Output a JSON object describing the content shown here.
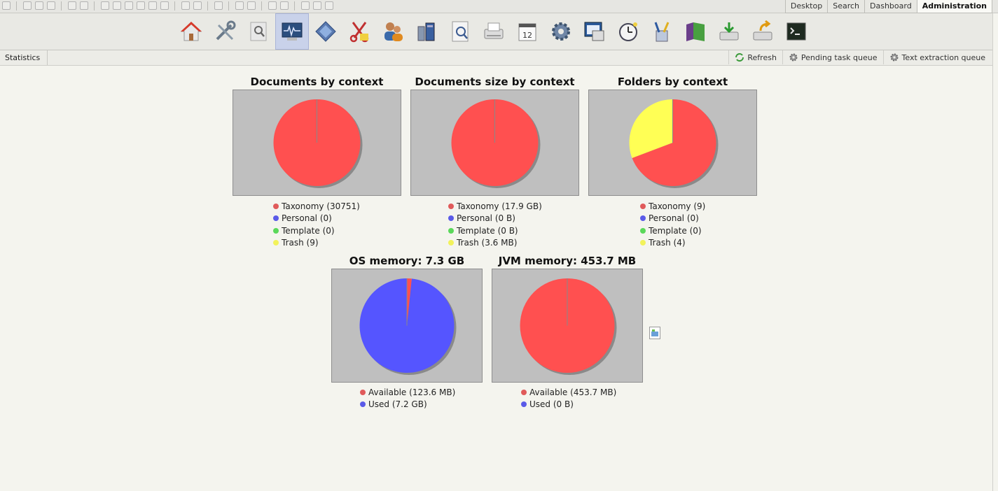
{
  "tabs": [
    "Desktop",
    "Search",
    "Dashboard",
    "Administration"
  ],
  "active_tab": "Administration",
  "toolbar_icons": [
    "home-icon",
    "tools-icon",
    "search-doc-icon",
    "stats-monitor-icon",
    "diamond-icon",
    "scissors-icon",
    "users-icon",
    "mail-profiles-icon",
    "report-icon",
    "scanner-icon",
    "calendar-icon",
    "gear-icon",
    "desktop-window-icon",
    "clock-icon",
    "brush-icon",
    "book-icon",
    "import-icon",
    "export-icon",
    "terminal-icon"
  ],
  "breadcrumb": "Statistics",
  "actions": {
    "refresh": "Refresh",
    "pending": "Pending task queue",
    "text_extraction": "Text extraction queue"
  },
  "colors": {
    "red": "#ff5050",
    "blue": "#5555ff",
    "green": "#55dd55",
    "yellow": "#ffff55",
    "box": "#bfbfbf"
  },
  "charts": {
    "docs": {
      "title": "Documents by context",
      "legend": [
        "Taxonomy (30751)",
        "Personal (0)",
        "Template (0)",
        "Trash (9)"
      ]
    },
    "size": {
      "title": "Documents size by context",
      "legend": [
        "Taxonomy (17.9 GB)",
        "Personal (0 B)",
        "Template (0 B)",
        "Trash (3.6 MB)"
      ]
    },
    "folders": {
      "title": "Folders by context",
      "legend": [
        "Taxonomy (9)",
        "Personal (0)",
        "Template (0)",
        "Trash (4)"
      ]
    },
    "os": {
      "title": "OS memory: 7.3 GB",
      "legend": [
        "Available (123.6 MB)",
        "Used (7.2 GB)"
      ]
    },
    "jvm": {
      "title": "JVM memory: 453.7 MB",
      "legend": [
        "Available (453.7 MB)",
        "Used (0 B)"
      ]
    }
  },
  "chart_data": [
    {
      "type": "pie",
      "title": "Documents by context",
      "labels": [
        "Taxonomy",
        "Personal",
        "Template",
        "Trash"
      ],
      "values": [
        30751,
        0,
        0,
        9
      ]
    },
    {
      "type": "pie",
      "title": "Documents size by context",
      "labels": [
        "Taxonomy",
        "Personal",
        "Template",
        "Trash"
      ],
      "values": [
        17.9,
        0,
        0,
        0.0036
      ],
      "unit": "GB"
    },
    {
      "type": "pie",
      "title": "Folders by context",
      "labels": [
        "Taxonomy",
        "Personal",
        "Template",
        "Trash"
      ],
      "values": [
        9,
        0,
        0,
        4
      ]
    },
    {
      "type": "pie",
      "title": "OS memory: 7.3 GB",
      "labels": [
        "Available",
        "Used"
      ],
      "values": [
        123.6,
        7372.8
      ],
      "unit": "MB"
    },
    {
      "type": "pie",
      "title": "JVM memory: 453.7 MB",
      "labels": [
        "Available",
        "Used"
      ],
      "values": [
        453.7,
        0
      ],
      "unit": "MB"
    }
  ]
}
